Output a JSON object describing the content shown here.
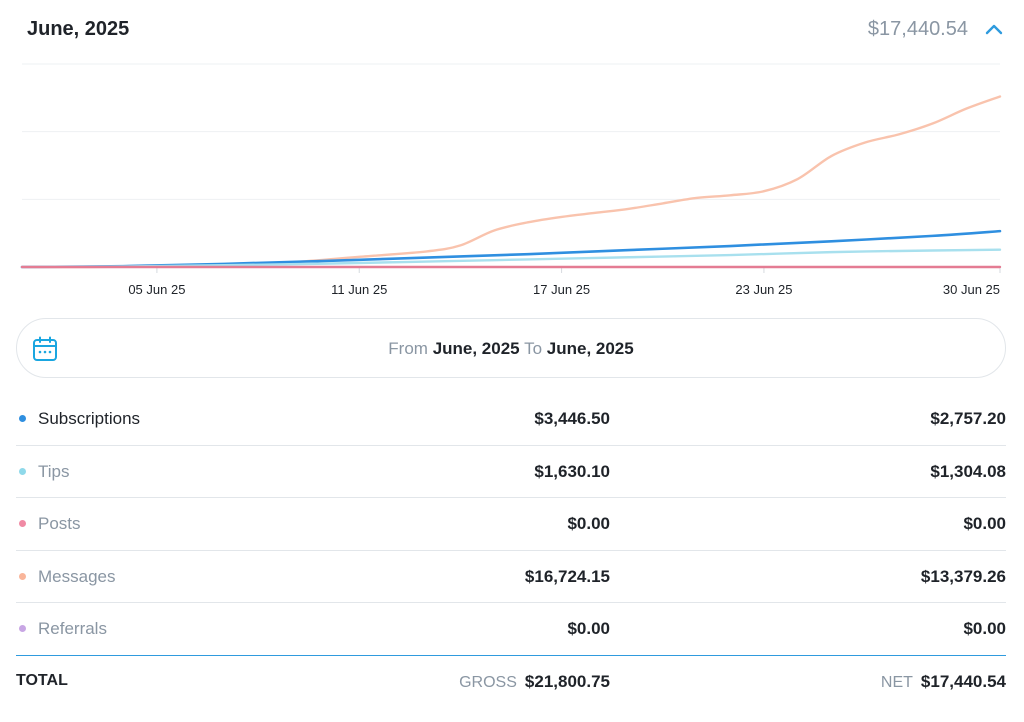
{
  "header": {
    "title": "June, 2025",
    "amount": "$17,440.54",
    "collapse_icon": "chevron-up-icon"
  },
  "date_range": {
    "from_label": "From",
    "from_value": "June, 2025",
    "to_label": "To",
    "to_value": "June, 2025",
    "icon": "calendar-icon"
  },
  "rows": [
    {
      "label": "Subscriptions",
      "gross": "$3,446.50",
      "net": "$2,757.20",
      "color": "#2f8fe0",
      "active": true
    },
    {
      "label": "Tips",
      "gross": "$1,630.10",
      "net": "$1,304.08",
      "color": "#8fd9ea",
      "active": false
    },
    {
      "label": "Posts",
      "gross": "$0.00",
      "net": "$0.00",
      "color": "#f08aa4",
      "active": false
    },
    {
      "label": "Messages",
      "gross": "$16,724.15",
      "net": "$13,379.26",
      "color": "#f9b59a",
      "active": false
    },
    {
      "label": "Referrals",
      "gross": "$0.00",
      "net": "$0.00",
      "color": "#c8a6e4",
      "active": false
    }
  ],
  "totals": {
    "label": "TOTAL",
    "gross_label": "GROSS",
    "gross_value": "$21,800.75",
    "net_label": "NET",
    "net_value": "$17,440.54"
  },
  "chart_data": {
    "type": "line",
    "x_ticks": [
      "05 Jun 25",
      "11 Jun 25",
      "17 Jun 25",
      "23 Jun 25",
      "30 Jun 25"
    ],
    "x_tick_days": [
      5,
      11,
      17,
      23,
      30
    ],
    "x_range": [
      1,
      30
    ],
    "ylim": [
      0,
      15000
    ],
    "grid": true,
    "series": [
      {
        "name": "Messages",
        "color": "#f9c3ad",
        "points": [
          [
            1,
            0
          ],
          [
            3,
            0
          ],
          [
            5,
            60
          ],
          [
            7,
            150
          ],
          [
            9,
            350
          ],
          [
            11,
            750
          ],
          [
            13,
            1150
          ],
          [
            14,
            1600
          ],
          [
            15,
            2700
          ],
          [
            16,
            3300
          ],
          [
            17,
            3700
          ],
          [
            18,
            4000
          ],
          [
            19,
            4300
          ],
          [
            20,
            4700
          ],
          [
            21,
            5100
          ],
          [
            22,
            5300
          ],
          [
            23,
            5600
          ],
          [
            24,
            6500
          ],
          [
            25,
            8200
          ],
          [
            26,
            9200
          ],
          [
            27,
            9800
          ],
          [
            28,
            10600
          ],
          [
            29,
            11700
          ],
          [
            30,
            12600
          ]
        ]
      },
      {
        "name": "Subscriptions",
        "color": "#2f8fe0",
        "points": [
          [
            1,
            0
          ],
          [
            4,
            60
          ],
          [
            7,
            230
          ],
          [
            10,
            450
          ],
          [
            13,
            700
          ],
          [
            16,
            950
          ],
          [
            19,
            1250
          ],
          [
            22,
            1550
          ],
          [
            25,
            1900
          ],
          [
            28,
            2300
          ],
          [
            30,
            2650
          ]
        ]
      },
      {
        "name": "Tips",
        "color": "#a8e0ee",
        "points": [
          [
            1,
            0
          ],
          [
            4,
            40
          ],
          [
            7,
            130
          ],
          [
            10,
            250
          ],
          [
            13,
            400
          ],
          [
            16,
            560
          ],
          [
            19,
            720
          ],
          [
            22,
            880
          ],
          [
            25,
            1100
          ],
          [
            28,
            1220
          ],
          [
            30,
            1280
          ]
        ]
      },
      {
        "name": "Posts",
        "color": "#e47c93",
        "points": [
          [
            1,
            0
          ],
          [
            30,
            0
          ]
        ]
      }
    ]
  }
}
